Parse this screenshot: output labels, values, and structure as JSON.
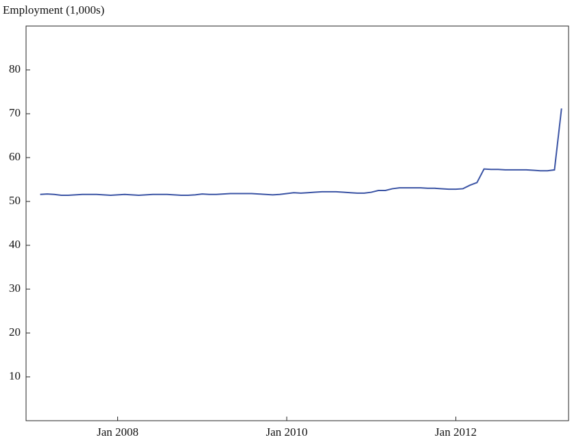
{
  "chart_data": {
    "type": "line",
    "ylabel": "Employment (1,000s)",
    "x": [
      "2007-02",
      "2007-03",
      "2007-04",
      "2007-05",
      "2007-06",
      "2007-07",
      "2007-08",
      "2007-09",
      "2007-10",
      "2007-11",
      "2007-12",
      "2008-01",
      "2008-02",
      "2008-03",
      "2008-04",
      "2008-05",
      "2008-06",
      "2008-07",
      "2008-08",
      "2008-09",
      "2008-10",
      "2008-11",
      "2008-12",
      "2009-01",
      "2009-02",
      "2009-03",
      "2009-04",
      "2009-05",
      "2009-06",
      "2009-07",
      "2009-08",
      "2009-09",
      "2009-10",
      "2009-11",
      "2009-12",
      "2010-01",
      "2010-02",
      "2010-03",
      "2010-04",
      "2010-05",
      "2010-06",
      "2010-07",
      "2010-08",
      "2010-09",
      "2010-10",
      "2010-11",
      "2010-12",
      "2011-01",
      "2011-02",
      "2011-03",
      "2011-04",
      "2011-05",
      "2011-06",
      "2011-07",
      "2011-08",
      "2011-09",
      "2011-10",
      "2011-11",
      "2011-12",
      "2012-01",
      "2012-02",
      "2012-03",
      "2012-04",
      "2012-05",
      "2012-06",
      "2012-07",
      "2012-08",
      "2012-09",
      "2012-10",
      "2012-11",
      "2012-12",
      "2013-01",
      "2013-02",
      "2013-03",
      "2013-04"
    ],
    "series": [
      {
        "name": "Employment",
        "color": "#3a53a4",
        "values": [
          51.6,
          51.7,
          51.6,
          51.4,
          51.4,
          51.5,
          51.6,
          51.6,
          51.6,
          51.5,
          51.4,
          51.5,
          51.6,
          51.5,
          51.4,
          51.5,
          51.6,
          51.6,
          51.6,
          51.5,
          51.4,
          51.4,
          51.5,
          51.7,
          51.6,
          51.6,
          51.7,
          51.8,
          51.8,
          51.8,
          51.8,
          51.7,
          51.6,
          51.5,
          51.6,
          51.8,
          52.0,
          51.9,
          52.0,
          52.1,
          52.2,
          52.2,
          52.2,
          52.1,
          52.0,
          51.9,
          51.9,
          52.1,
          52.5,
          52.5,
          52.9,
          53.1,
          53.1,
          53.1,
          53.1,
          53.0,
          53.0,
          52.9,
          52.8,
          52.8,
          52.9,
          53.7,
          54.3,
          57.4,
          57.3,
          57.3,
          57.2,
          57.2,
          57.2,
          57.2,
          57.1,
          57.0,
          57.0,
          57.2,
          71.2
        ]
      }
    ],
    "xlim": [
      "2006-12",
      "2013-05"
    ],
    "xticks": [
      {
        "value": "2008-01",
        "label": "Jan 2008"
      },
      {
        "value": "2010-01",
        "label": "Jan 2010"
      },
      {
        "value": "2012-01",
        "label": "Jan 2012"
      }
    ],
    "ylim": [
      0,
      90
    ],
    "yticks": [
      10,
      20,
      30,
      40,
      50,
      60,
      70,
      80
    ],
    "grid": false
  }
}
